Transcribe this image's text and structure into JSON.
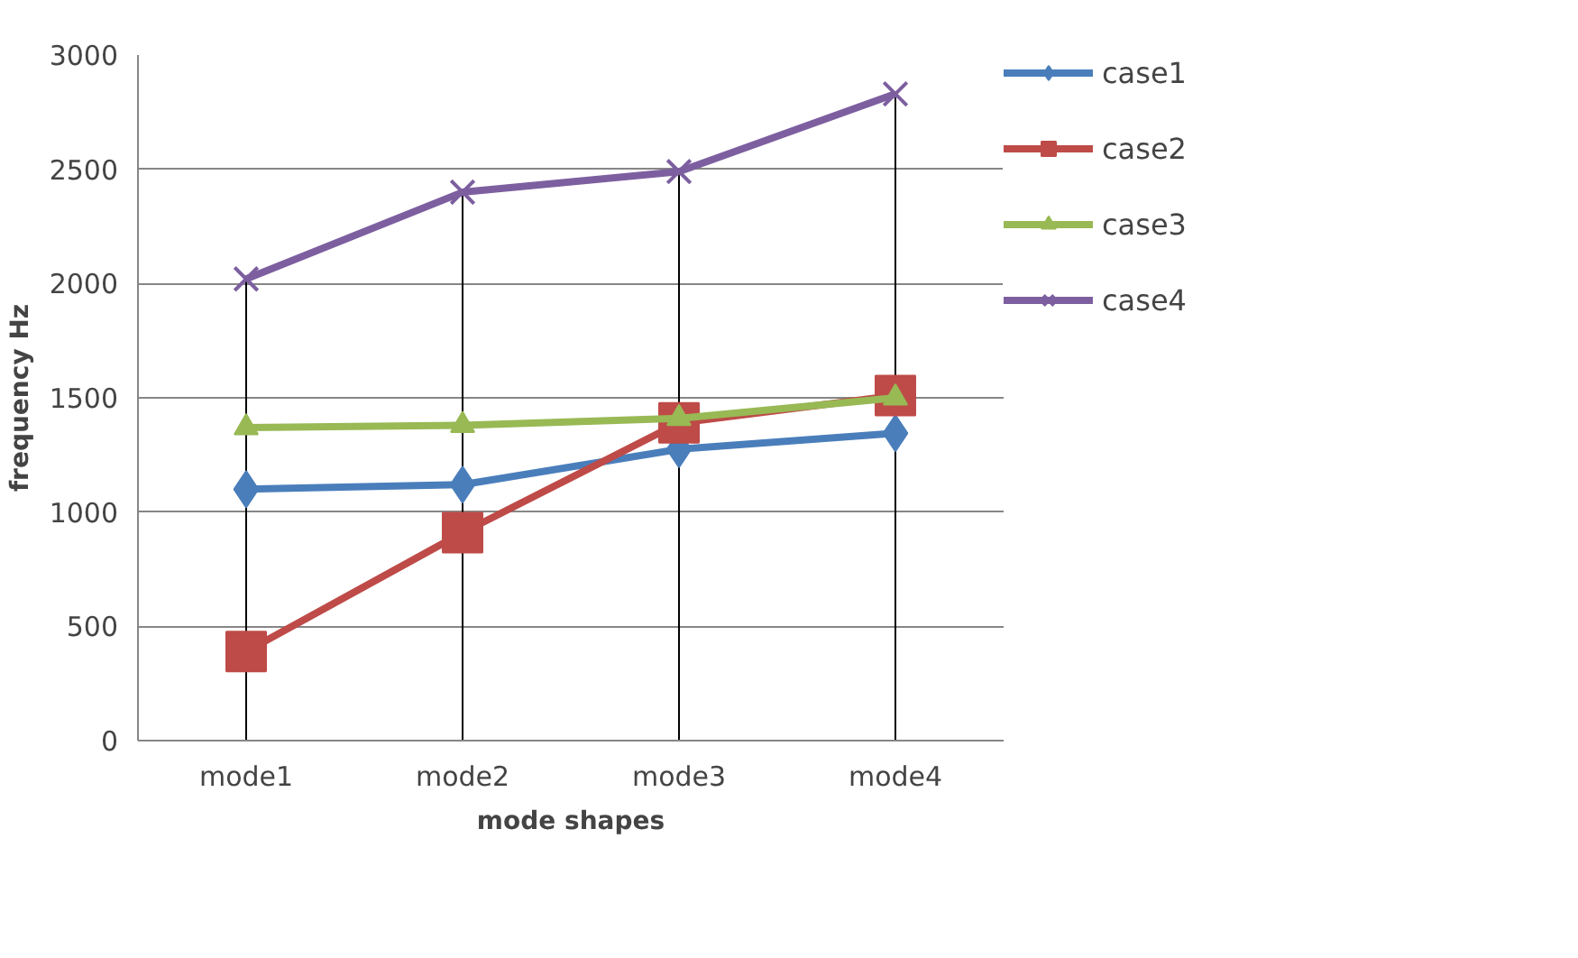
{
  "chart_data": {
    "type": "line",
    "xlabel": "mode shapes",
    "ylabel": "frequency Hz",
    "categories": [
      "mode1",
      "mode2",
      "mode3",
      "mode4"
    ],
    "series": [
      {
        "name": "case1",
        "color": "#4a7ebb",
        "values": [
          1100,
          1120,
          1275,
          1345
        ],
        "marker": "diamond"
      },
      {
        "name": "case2",
        "color": "#be4b48",
        "values": [
          390,
          910,
          1390,
          1510
        ],
        "marker": "square"
      },
      {
        "name": "case3",
        "color": "#98b954",
        "values": [
          1370,
          1380,
          1410,
          1500
        ],
        "marker": "triangle"
      },
      {
        "name": "case4",
        "color": "#7d5fa0",
        "values": [
          2020,
          2400,
          2490,
          2830
        ],
        "marker": "cross"
      }
    ],
    "ylim": [
      0,
      3000
    ],
    "yticks": [
      0,
      500,
      1000,
      1500,
      2000,
      2500,
      3000
    ],
    "grid": "y",
    "legend": "right",
    "line_style": "solid",
    "ref_lines": [
      {
        "axis": "x",
        "value": "mode1",
        "label": null,
        "color": "#000000"
      },
      {
        "axis": "x",
        "value": "mode2",
        "label": null,
        "color": "#000000"
      },
      {
        "axis": "x",
        "value": "mode3",
        "label": null,
        "color": "#000000"
      },
      {
        "axis": "x",
        "value": "mode4",
        "label": null,
        "color": "#000000"
      }
    ]
  }
}
